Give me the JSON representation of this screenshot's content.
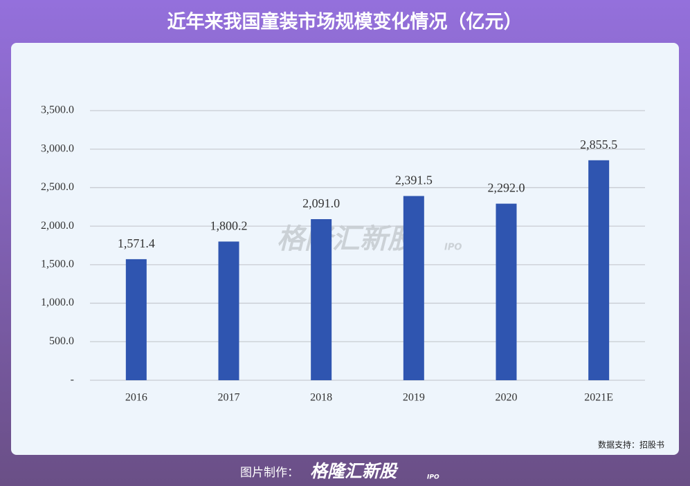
{
  "chart_data": {
    "type": "bar",
    "title": "近年来我国童装市场规模变化情况（亿元）",
    "categories": [
      "2016",
      "2017",
      "2018",
      "2019",
      "2020",
      "2021E"
    ],
    "values": [
      1571.4,
      1800.2,
      2091.0,
      2391.5,
      2292.0,
      2855.5
    ],
    "value_labels": [
      "1,571.4",
      "1,800.2",
      "2,091.0",
      "2,391.5",
      "2,292.0",
      "2,855.5"
    ],
    "color": "#2f55b0",
    "ylim": [
      0,
      3500
    ],
    "yticks": [
      {
        "value": 0,
        "label": "-"
      },
      {
        "value": 500,
        "label": "500.0"
      },
      {
        "value": 1000,
        "label": "1,000.0"
      },
      {
        "value": 1500,
        "label": "1,500.0"
      },
      {
        "value": 2000,
        "label": "2,000.0"
      },
      {
        "value": 2500,
        "label": "2,500.0"
      },
      {
        "value": 3000,
        "label": "3,000.0"
      },
      {
        "value": 3500,
        "label": "3,500.0"
      }
    ],
    "grid": true,
    "source": "数据支持：招股书"
  },
  "watermark": {
    "brand": "格隆汇新股",
    "tag": "IPO"
  },
  "footer": {
    "label": "图片制作：",
    "brand": "格隆汇新股",
    "tag": "IPO"
  }
}
